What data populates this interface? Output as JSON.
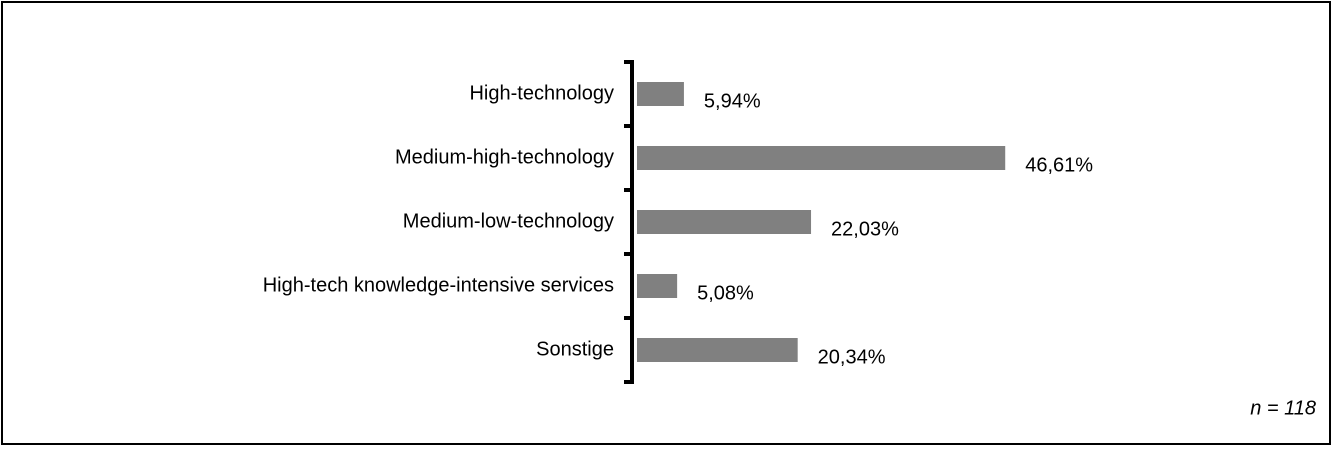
{
  "chart_data": {
    "type": "bar",
    "orientation": "horizontal",
    "categories": [
      "High-technology",
      "Medium-high-technology",
      "Medium-low-technology",
      "High-tech knowledge-intensive services",
      "Sonstige"
    ],
    "values": [
      5.94,
      46.61,
      22.03,
      5.08,
      20.34
    ],
    "value_labels": [
      "5,94%",
      "46,61%",
      "22,03%",
      "5,08%",
      "20,34%"
    ],
    "color": "#808080",
    "annotation": "n = 118"
  }
}
